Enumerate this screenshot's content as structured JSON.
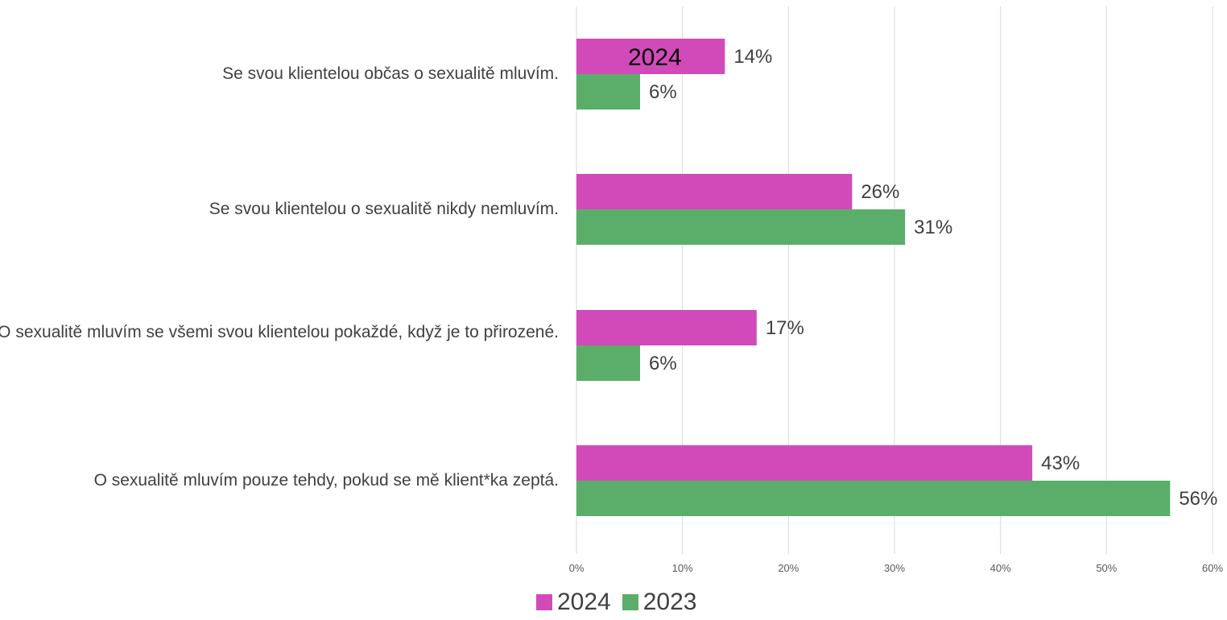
{
  "chart_data": {
    "type": "bar",
    "orientation": "horizontal",
    "categories": [
      "Se svou klientelou občas o sexualitě mluvím.",
      "Se svou klientelou o sexualitě nikdy nemluvím.",
      "O sexualitě mluvím se všemi svou klientelou pokaždé, když je to přirozené.",
      "O sexualitě mluvím pouze tehdy, pokud se mě klient*ka zeptá."
    ],
    "series": [
      {
        "name": "2024",
        "color": "#D24AB9",
        "values": [
          14,
          26,
          17,
          43
        ],
        "labels": [
          "14%",
          "26%",
          "17%",
          "43%"
        ]
      },
      {
        "name": "2023",
        "color": "#5AAE6A",
        "values": [
          6,
          31,
          6,
          56
        ],
        "labels": [
          "6%",
          "31%",
          "6%",
          "56%"
        ]
      }
    ],
    "xlim": [
      0,
      60
    ],
    "x_ticks": [
      "0%",
      "10%",
      "20%",
      "30%",
      "40%",
      "50%",
      "60%"
    ],
    "grid": "vertical",
    "legend": "bottom-center",
    "overlay_text": "2024"
  }
}
